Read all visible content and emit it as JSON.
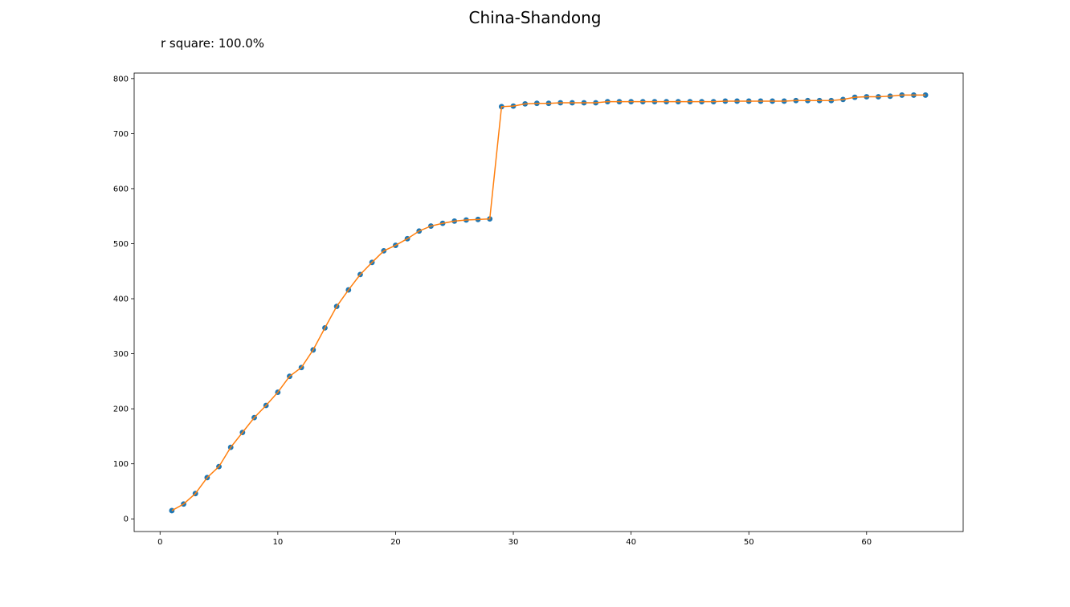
{
  "chart_data": {
    "type": "scatter",
    "title": "China-Shandong",
    "annotation": "r square: 100.0%",
    "xlabel": "",
    "ylabel": "",
    "xlim": [
      -2.2,
      68.2
    ],
    "ylim": [
      -23,
      810
    ],
    "xticks": [
      0,
      10,
      20,
      30,
      40,
      50,
      60
    ],
    "yticks": [
      0,
      100,
      200,
      300,
      400,
      500,
      600,
      700,
      800
    ],
    "grid": false,
    "colors": {
      "points": "#1f77b4",
      "fit_line": "#ff7f0e",
      "axes": "#000000"
    },
    "x": [
      1,
      2,
      3,
      4,
      5,
      6,
      7,
      8,
      9,
      10,
      11,
      12,
      13,
      14,
      15,
      16,
      17,
      18,
      19,
      20,
      21,
      22,
      23,
      24,
      25,
      26,
      27,
      28,
      29,
      30,
      31,
      32,
      33,
      34,
      35,
      36,
      37,
      38,
      39,
      40,
      41,
      42,
      43,
      44,
      45,
      46,
      47,
      48,
      49,
      50,
      51,
      52,
      53,
      54,
      55,
      56,
      57,
      58,
      59,
      60,
      61,
      62,
      63,
      64,
      65
    ],
    "series": [
      {
        "kind": "points",
        "values": [
          15,
          27,
          46,
          75,
          95,
          130,
          157,
          184,
          206,
          230,
          259,
          275,
          307,
          347,
          386,
          416,
          444,
          466,
          487,
          497,
          509,
          523,
          532,
          537,
          541,
          543,
          544,
          545,
          749,
          750,
          754,
          755,
          755,
          756,
          756,
          756,
          756,
          758,
          758,
          758,
          758,
          758,
          758,
          758,
          758,
          758,
          758,
          759,
          759,
          759,
          759,
          759,
          759,
          760,
          760,
          760,
          760,
          762,
          766,
          767,
          767,
          768,
          770,
          770,
          770
        ]
      },
      {
        "kind": "line",
        "values": [
          15,
          27,
          46,
          75,
          95,
          130,
          157,
          184,
          206,
          230,
          259,
          275,
          307,
          347,
          386,
          416,
          444,
          466,
          487,
          497,
          509,
          523,
          532,
          537,
          541,
          543,
          544,
          545,
          749,
          750,
          754,
          755,
          755,
          756,
          756,
          756,
          756,
          758,
          758,
          758,
          758,
          758,
          758,
          758,
          758,
          758,
          758,
          759,
          759,
          759,
          759,
          759,
          759,
          760,
          760,
          760,
          760,
          762,
          766,
          767,
          767,
          768,
          770,
          770,
          770
        ]
      }
    ]
  }
}
